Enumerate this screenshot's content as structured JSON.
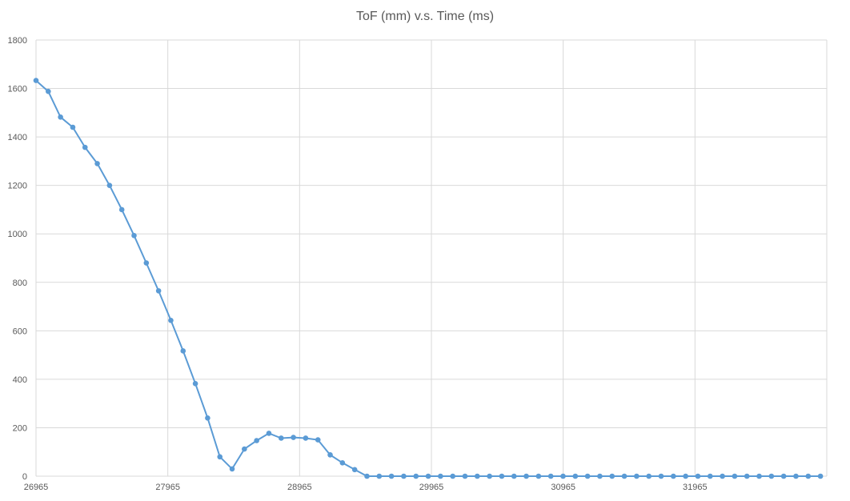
{
  "chart_data": {
    "type": "line",
    "title": "ToF (mm) v.s. Time (ms)",
    "xlabel": "",
    "ylabel": "",
    "xlim": [
      26965,
      32965
    ],
    "ylim": [
      0,
      1800
    ],
    "x_ticks": [
      26965,
      27965,
      28965,
      29965,
      30965,
      31965
    ],
    "y_ticks": [
      0,
      200,
      400,
      600,
      800,
      1000,
      1200,
      1400,
      1600,
      1800
    ],
    "grid": true,
    "legend": "none",
    "series": [
      {
        "color": "#5b9bd5",
        "x": [
          26965,
          27058,
          27151,
          27244,
          27337,
          27430,
          27523,
          27616,
          27709,
          27802,
          27895,
          27988,
          28081,
          28174,
          28267,
          28360,
          28453,
          28546,
          28639,
          28732,
          28825,
          28918,
          29011,
          29104,
          29197,
          29290,
          29383,
          29476,
          29569,
          29662,
          29755,
          29848,
          29941,
          30034,
          30127,
          30220,
          30313,
          30406,
          30499,
          30592,
          30685,
          30778,
          30871,
          30964,
          31057,
          31150,
          31243,
          31336,
          31429,
          31522,
          31615,
          31708,
          31801,
          31894,
          31987,
          32080,
          32173,
          32266,
          32359,
          32452,
          32545,
          32638,
          32731,
          32824,
          32917
        ],
        "y": [
          1633,
          1588,
          1482,
          1440,
          1357,
          1290,
          1200,
          1100,
          993,
          880,
          765,
          643,
          517,
          382,
          240,
          80,
          30,
          112,
          147,
          177,
          157,
          160,
          157,
          150,
          88,
          55,
          27,
          0,
          0,
          0,
          0,
          0,
          0,
          0,
          0,
          0,
          0,
          0,
          0,
          0,
          0,
          0,
          0,
          0,
          0,
          0,
          0,
          0,
          0,
          0,
          0,
          0,
          0,
          0,
          0,
          0,
          0,
          0,
          0,
          0,
          0,
          0,
          0,
          0,
          0
        ]
      }
    ]
  }
}
